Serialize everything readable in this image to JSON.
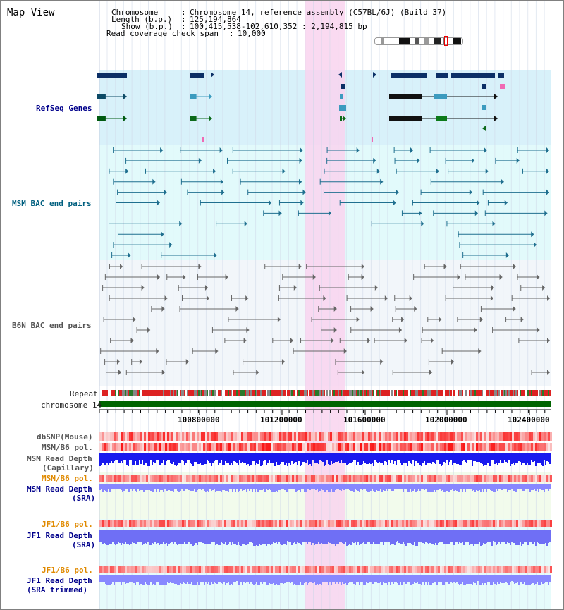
{
  "page_title": "Map View",
  "info": {
    "chromosome_label": "Chromosome",
    "chromosome_value": "Chromosome 14, reference assembly (C57BL/6J) (Build 37)",
    "length_label": "Length (b.p.)",
    "length_value": "125,194,864",
    "show_label": "Show (b.p.)",
    "show_value": "100,415,538-102,610,352 : 2,194,815 bp",
    "coverage_label": "Read coverage check span",
    "coverage_value": "10,000"
  },
  "tracks": {
    "refseq": "RefSeq Genes",
    "msm_bac": "MSM BAC end pairs",
    "b6n_bac": "B6N BAC end pairs",
    "repeat": "Repeat",
    "chromosome": "chromosome 14",
    "dbsnp": "dbSNP(Mouse)",
    "msm_pol": "MSM/B6 pol.",
    "msm_depth_cap_1": "MSM Read Depth",
    "msm_depth_cap_2": "(Capillary)",
    "msm_pol_2": "MSM/B6 pol.",
    "msm_depth_sra_1": "MSM Read Depth",
    "msm_depth_sra_2": "(SRA)",
    "jf1_pol": "JF1/B6 pol.",
    "jf1_depth_sra_1": "JF1 Read Depth",
    "jf1_depth_sra_2": "(SRA)",
    "jf1_pol_2": "JF1/B6 pol.",
    "jf1_depth_trim_1": "JF1 Read Depth",
    "jf1_depth_trim_2": "(SRA trimmed)"
  },
  "axis": {
    "ticks": [
      "100800000",
      "101200000",
      "101600000",
      "102000000",
      "102400000"
    ]
  },
  "colors": {
    "highlight": "#f9d3ef",
    "refseq_bg": "#d8f1fa",
    "msm_bg": "#e2fafb",
    "b6n_bg": "#f2f6fa",
    "chromosome_bar": "#006400",
    "depth_capillary": "#1a1aee",
    "depth_sra": "#8888ff"
  }
}
